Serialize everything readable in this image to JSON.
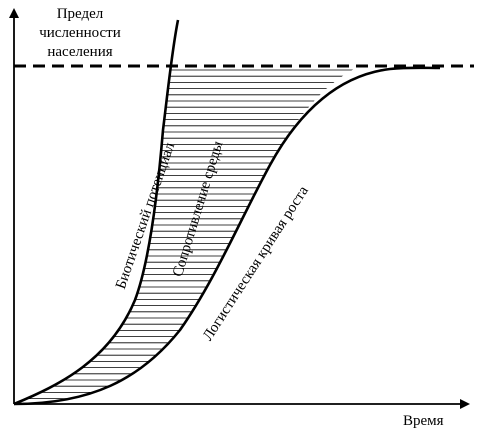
{
  "labels": {
    "limit_line1": "Предел",
    "limit_line2": "численности",
    "limit_line3": "населения",
    "time_axis": "Время",
    "biotic_potential": "Биотический потенциал",
    "environmental_resistance": "Сопротивление среды",
    "logistic_curve": "Логистическая кривая роста"
  },
  "style": {
    "ink_color": "#000000",
    "background_color": "#ffffff"
  }
}
